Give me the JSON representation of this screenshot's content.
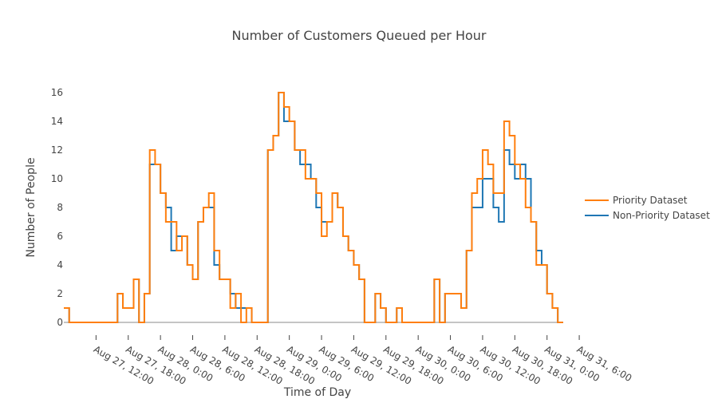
{
  "chart_data": {
    "type": "line",
    "line_shape": "step",
    "title": "Number of Customers Queued per Hour",
    "xlabel": "Time of Day",
    "ylabel": "Number of People",
    "x_start": "Aug 27, 06:00",
    "x_step_hours": 1,
    "ylim": [
      0,
      16.5
    ],
    "grid": false,
    "legend_position": "right",
    "x_ticks": [
      {
        "h": 6,
        "label": "Aug 27, 12:00"
      },
      {
        "h": 12,
        "label": "Aug 27, 18:00"
      },
      {
        "h": 18,
        "label": "Aug 28, 0:00"
      },
      {
        "h": 24,
        "label": "Aug 28, 6:00"
      },
      {
        "h": 30,
        "label": "Aug 28, 12:00"
      },
      {
        "h": 36,
        "label": "Aug 28, 18:00"
      },
      {
        "h": 42,
        "label": "Aug 29, 0:00"
      },
      {
        "h": 48,
        "label": "Aug 29, 6:00"
      },
      {
        "h": 54,
        "label": "Aug 29, 12:00"
      },
      {
        "h": 60,
        "label": "Aug 29, 18:00"
      },
      {
        "h": 66,
        "label": "Aug 30, 0:00"
      },
      {
        "h": 72,
        "label": "Aug 30, 6:00"
      },
      {
        "h": 78,
        "label": "Aug 30, 12:00"
      },
      {
        "h": 84,
        "label": "Aug 30, 18:00"
      },
      {
        "h": 90,
        "label": "Aug 31, 0:00"
      },
      {
        "h": 96,
        "label": "Aug 31, 6:00"
      }
    ],
    "y_ticks": [
      0,
      2,
      4,
      6,
      8,
      10,
      12,
      14,
      16
    ],
    "series": [
      {
        "name": "Priority Dataset",
        "color": "#ff7f0e",
        "values": [
          1,
          0,
          0,
          0,
          0,
          0,
          0,
          0,
          0,
          0,
          2,
          1,
          1,
          3,
          0,
          2,
          12,
          11,
          9,
          7,
          7,
          5,
          6,
          4,
          3,
          7,
          8,
          9,
          5,
          3,
          3,
          1,
          2,
          0,
          1,
          0,
          0,
          0,
          12,
          13,
          16,
          15,
          14,
          12,
          12,
          10,
          10,
          9,
          6,
          7,
          9,
          8,
          6,
          5,
          4,
          3,
          0,
          0,
          2,
          1,
          0,
          0,
          1,
          0,
          0,
          0,
          0,
          0,
          0,
          3,
          0,
          2,
          2,
          2,
          1,
          5,
          9,
          10,
          12,
          11,
          9,
          9,
          14,
          13,
          11,
          10,
          8,
          7,
          4,
          4,
          2,
          1,
          0
        ]
      },
      {
        "name": "Non-Priority Dataset",
        "color": "#1f77b4",
        "values": [
          1,
          0,
          0,
          0,
          0,
          0,
          0,
          0,
          0,
          0,
          2,
          1,
          1,
          3,
          0,
          2,
          11,
          11,
          9,
          8,
          5,
          6,
          6,
          4,
          3,
          7,
          8,
          8,
          4,
          3,
          3,
          2,
          1,
          1,
          1,
          0,
          0,
          0,
          12,
          13,
          16,
          14,
          14,
          12,
          11,
          11,
          10,
          8,
          7,
          7,
          9,
          8,
          6,
          5,
          4,
          3,
          0,
          0,
          2,
          1,
          0,
          0,
          1,
          0,
          0,
          0,
          0,
          0,
          0,
          3,
          0,
          2,
          2,
          2,
          1,
          5,
          8,
          8,
          10,
          10,
          8,
          7,
          12,
          11,
          10,
          11,
          10,
          7,
          5,
          4,
          2,
          1,
          0
        ]
      }
    ]
  }
}
